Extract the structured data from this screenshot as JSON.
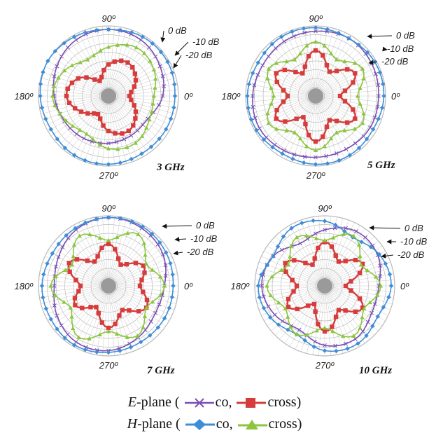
{
  "chart_data": [
    {
      "type": "polar",
      "title": "3 GHz",
      "angle_labels": [
        "90º",
        "180º",
        "0º",
        "270º"
      ],
      "radial_labels": [
        "0 dB",
        "-10 dB",
        "-20 dB"
      ],
      "rlim_db": [
        -40,
        0
      ],
      "series": [
        {
          "key": "eco",
          "radii_db": [
            -9,
            -6,
            -3,
            -2,
            -3,
            -6,
            -9,
            -11,
            -12,
            -13,
            -14,
            -14
          ]
        },
        {
          "key": "ecross",
          "radii_db": [
            -28,
            -22,
            -18,
            -22,
            -30,
            -20,
            -16,
            -22,
            -28,
            -20,
            -17,
            -22
          ]
        },
        {
          "key": "hco",
          "radii_db": [
            -2,
            -1,
            -1,
            -2,
            -1,
            0,
            -1,
            -2,
            -1,
            -1,
            -2,
            -2
          ]
        },
        {
          "key": "hcross",
          "radii_db": [
            -14,
            -10,
            -8,
            -12,
            -16,
            -11,
            -8,
            -12,
            -15,
            -10,
            -9,
            -13
          ]
        }
      ]
    },
    {
      "type": "polar",
      "title": "5 GHz",
      "angle_labels": [
        "90º",
        "180º",
        "0º",
        "270º"
      ],
      "radial_labels": [
        "0 dB",
        "-10 dB",
        "-20 dB"
      ],
      "rlim_db": [
        -40,
        0
      ],
      "series": [
        {
          "key": "eco",
          "radii_db": [
            -4,
            -3,
            -2,
            -3,
            -4,
            -5,
            -4,
            -3,
            -4,
            -5,
            -5,
            -4
          ]
        },
        {
          "key": "ecross",
          "radii_db": [
            -26,
            -14,
            -24,
            -14,
            -25,
            -14,
            -24,
            -14,
            -26,
            -14,
            -24,
            -14
          ]
        },
        {
          "key": "hco",
          "radii_db": [
            -1,
            -1,
            -2,
            -1,
            -1,
            -2,
            -1,
            -1,
            -2,
            -1,
            -1,
            -2
          ]
        },
        {
          "key": "hcross",
          "radii_db": [
            -16,
            -9,
            -16,
            -9,
            -16,
            -9,
            -16,
            -9,
            -16,
            -9,
            -16,
            -9
          ]
        }
      ]
    },
    {
      "type": "polar",
      "title": "7 GHz",
      "angle_labels": [
        "90º",
        "180º",
        "0º",
        "270º"
      ],
      "radial_labels": [
        "0 dB",
        "-10 dB",
        "-20 dB"
      ],
      "rlim_db": [
        -40,
        0
      ],
      "series": [
        {
          "key": "eco",
          "radii_db": [
            -8,
            -4,
            -2,
            -1,
            -3,
            -7,
            -9,
            -6,
            -3,
            -3,
            -6,
            -9
          ]
        },
        {
          "key": "ecross",
          "radii_db": [
            -22,
            -17,
            -26,
            -16,
            -24,
            -14,
            -24,
            -18,
            -26,
            -16,
            -24,
            -15
          ]
        },
        {
          "key": "hco",
          "radii_db": [
            -3,
            -2,
            -1,
            -1,
            -2,
            -3,
            -2,
            -2,
            -1,
            -2,
            -3,
            -3
          ]
        },
        {
          "key": "hcross",
          "radii_db": [
            -8,
            -15,
            -6,
            -14,
            -7,
            -16,
            -7,
            -15,
            -6,
            -14,
            -7,
            -15
          ]
        }
      ]
    },
    {
      "type": "polar",
      "title": "10 GHz",
      "angle_labels": [
        "90º",
        "180º",
        "0º",
        "270º"
      ],
      "radial_labels": [
        "0 dB",
        "-10 dB",
        "-20 dB"
      ],
      "rlim_db": [
        -40,
        0
      ],
      "series": [
        {
          "key": "eco",
          "radii_db": [
            -9,
            -5,
            -4,
            -8,
            -12,
            -6,
            -4,
            -7,
            -11,
            -6,
            -5,
            -9
          ]
        },
        {
          "key": "ecross",
          "radii_db": [
            -28,
            -15,
            -24,
            -15,
            -26,
            -14,
            -24,
            -16,
            -28,
            -14,
            -24,
            -15
          ]
        },
        {
          "key": "hco",
          "radii_db": [
            -2,
            -4,
            -8,
            -3,
            -2,
            -6,
            -2,
            -4,
            -8,
            -3,
            -2,
            -5
          ]
        },
        {
          "key": "hcross",
          "radii_db": [
            -8,
            -16,
            -7,
            -14,
            -8,
            -16,
            -7,
            -14,
            -8,
            -16,
            -7,
            -14
          ]
        }
      ]
    }
  ],
  "series_styles": {
    "eco": {
      "color": "#7B4FB3",
      "marker": "x"
    },
    "ecross": {
      "color": "#D63C3C",
      "marker": "square"
    },
    "hco": {
      "color": "#3E8DD6",
      "marker": "diamond"
    },
    "hcross": {
      "color": "#8CC63E",
      "marker": "triangle"
    }
  },
  "legend": {
    "e_plane_prefix": "E",
    "h_plane_prefix": "H",
    "plane_suffix": "-plane (",
    "co_label": "co,",
    "cross_label": "cross)"
  }
}
